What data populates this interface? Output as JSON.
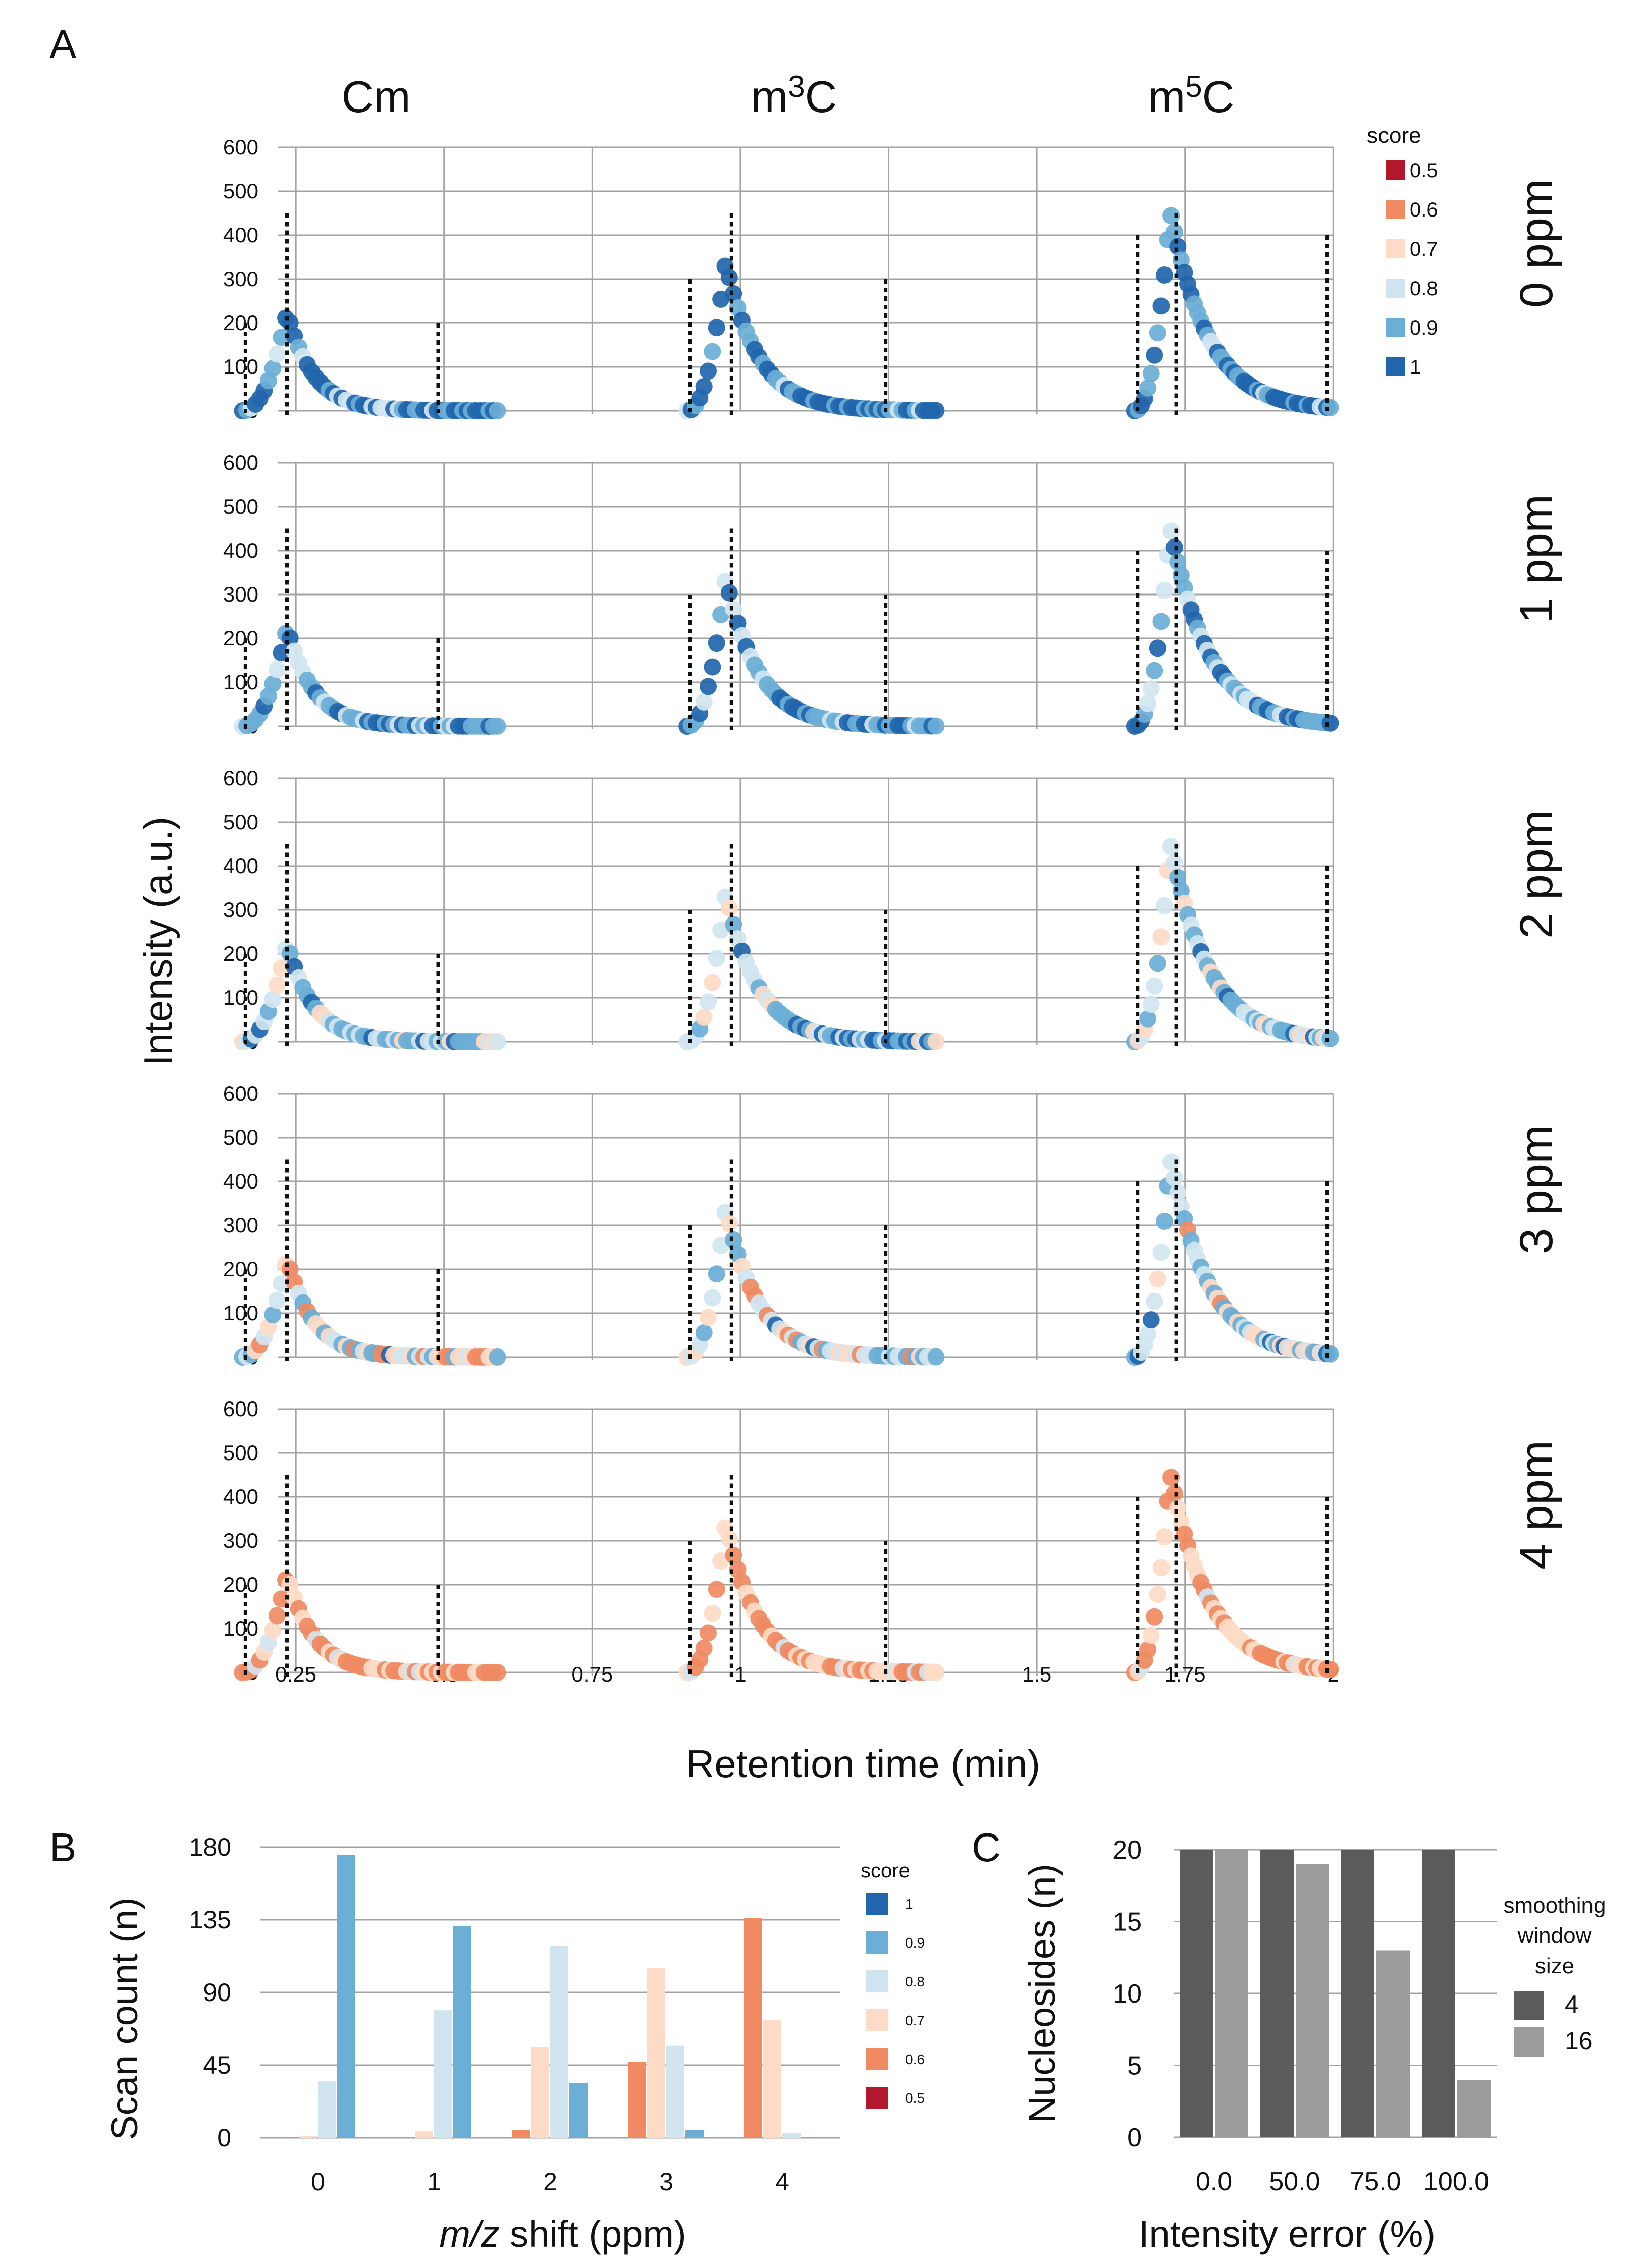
{
  "panel_labels": {
    "a": "A",
    "b": "B",
    "c": "C"
  },
  "colors": {
    "score_1": "#2166ac",
    "score_0_9": "#6baed6",
    "score_0_8": "#d1e5f0",
    "score_0_7": "#fddbc7",
    "score_0_6": "#ef8a62",
    "score_0_5": "#b2182b",
    "bar_4": "#5b5b5b",
    "bar_16": "#9b9b9b",
    "grid": "#a3a3a3"
  },
  "chart_data": [
    {
      "id": "A",
      "type": "scatter",
      "columns": [
        {
          "base": "m",
          "sup": "",
          "rest": "C",
          "label": "Cm",
          "peak_rt": 0.235,
          "peak_int": 225,
          "rt_min": 0.16,
          "rt_max": 0.59,
          "bounds": [
            0.165,
            0.235,
            0.49
          ],
          "bound_heights": [
            200,
            450,
            200
          ],
          "grid_x": [
            0.25,
            0.5
          ]
        },
        {
          "base": "m",
          "sup": "3",
          "rest": "C",
          "label": "m3C",
          "peak_rt": 0.975,
          "peak_int": 340,
          "rt_min": 0.91,
          "rt_max": 1.33,
          "bounds": [
            0.915,
            0.985,
            1.245
          ],
          "bound_heights": [
            300,
            450,
            300
          ],
          "grid_x": [
            1.0,
            1.25
          ]
        },
        {
          "base": "m",
          "sup": "5",
          "rest": "C",
          "label": "m5C",
          "peak_rt": 1.725,
          "peak_int": 455,
          "rt_min": 1.665,
          "rt_max": 1.995,
          "bounds": [
            1.67,
            1.735,
            1.99
          ],
          "bound_heights": [
            400,
            450,
            400
          ],
          "grid_x": [
            1.75,
            2.0
          ]
        }
      ],
      "rows": [
        {
          "label": "0 ppm",
          "ppm": 0
        },
        {
          "label": "1 ppm",
          "ppm": 1
        },
        {
          "label": "2 ppm",
          "ppm": 2
        },
        {
          "label": "3 ppm",
          "ppm": 3
        },
        {
          "label": "4 ppm",
          "ppm": 4
        }
      ],
      "column_titles": [
        "Cm",
        "m",
        "3",
        "C",
        "m",
        "5",
        "C"
      ],
      "y_ticks": [
        0,
        100,
        200,
        300,
        400,
        500,
        600
      ],
      "ylim": [
        0,
        600
      ],
      "x_ticks": [
        0.25,
        0.5,
        0.75,
        1,
        1.25,
        1.5,
        1.75,
        2
      ],
      "x_tick_labels": [
        "0.25",
        "0.5",
        "0.75",
        "1",
        "1.25",
        "1.5",
        "1.75",
        "2"
      ],
      "xlim": [
        0.1,
        2.05
      ],
      "xlabel": "Retention time (min)",
      "ylabel": "Intensity (a.u.)",
      "legend": {
        "title": "score",
        "entries": [
          "0.5",
          "0.6",
          "0.7",
          "0.8",
          "0.9",
          "1"
        ]
      }
    },
    {
      "id": "B",
      "type": "bar",
      "categories": [
        "0",
        "1",
        "2",
        "3",
        "4"
      ],
      "series": [
        {
          "name": "0.5",
          "values": [
            0,
            0,
            0,
            0,
            0
          ]
        },
        {
          "name": "0.6",
          "values": [
            0,
            0,
            5,
            47,
            136
          ]
        },
        {
          "name": "0.7",
          "values": [
            1,
            4,
            56,
            105,
            73
          ]
        },
        {
          "name": "0.8",
          "values": [
            35,
            79,
            119,
            57,
            3
          ]
        },
        {
          "name": "0.9",
          "values": [
            175,
            131,
            34,
            5,
            0
          ]
        },
        {
          "name": "1",
          "values": [
            0,
            0,
            0,
            0,
            0
          ]
        }
      ],
      "y_ticks": [
        0,
        45,
        90,
        135,
        180
      ],
      "ylim": [
        0,
        180
      ],
      "xlabel_italic": "m/z",
      "xlabel_rest": " shift (ppm)",
      "ylabel": "Scan count (n)",
      "legend": {
        "title": "score",
        "entries": [
          "1",
          "0.9",
          "0.8",
          "0.7",
          "0.6",
          "0.5"
        ]
      }
    },
    {
      "id": "C",
      "type": "bar",
      "categories": [
        "0.0",
        "50.0",
        "75.0",
        "100.0"
      ],
      "series": [
        {
          "name": "4",
          "values": [
            20,
            20,
            20,
            20
          ]
        },
        {
          "name": "16",
          "values": [
            20,
            19,
            13,
            4
          ]
        }
      ],
      "y_ticks": [
        0,
        5,
        10,
        15,
        20
      ],
      "ylim": [
        0,
        20
      ],
      "xlabel": "Intensity error (%)",
      "ylabel": "Nucleosides (n)",
      "legend": {
        "title_lines": [
          "smoothing",
          "window",
          "size"
        ],
        "entries": [
          "4",
          "16"
        ]
      }
    }
  ]
}
